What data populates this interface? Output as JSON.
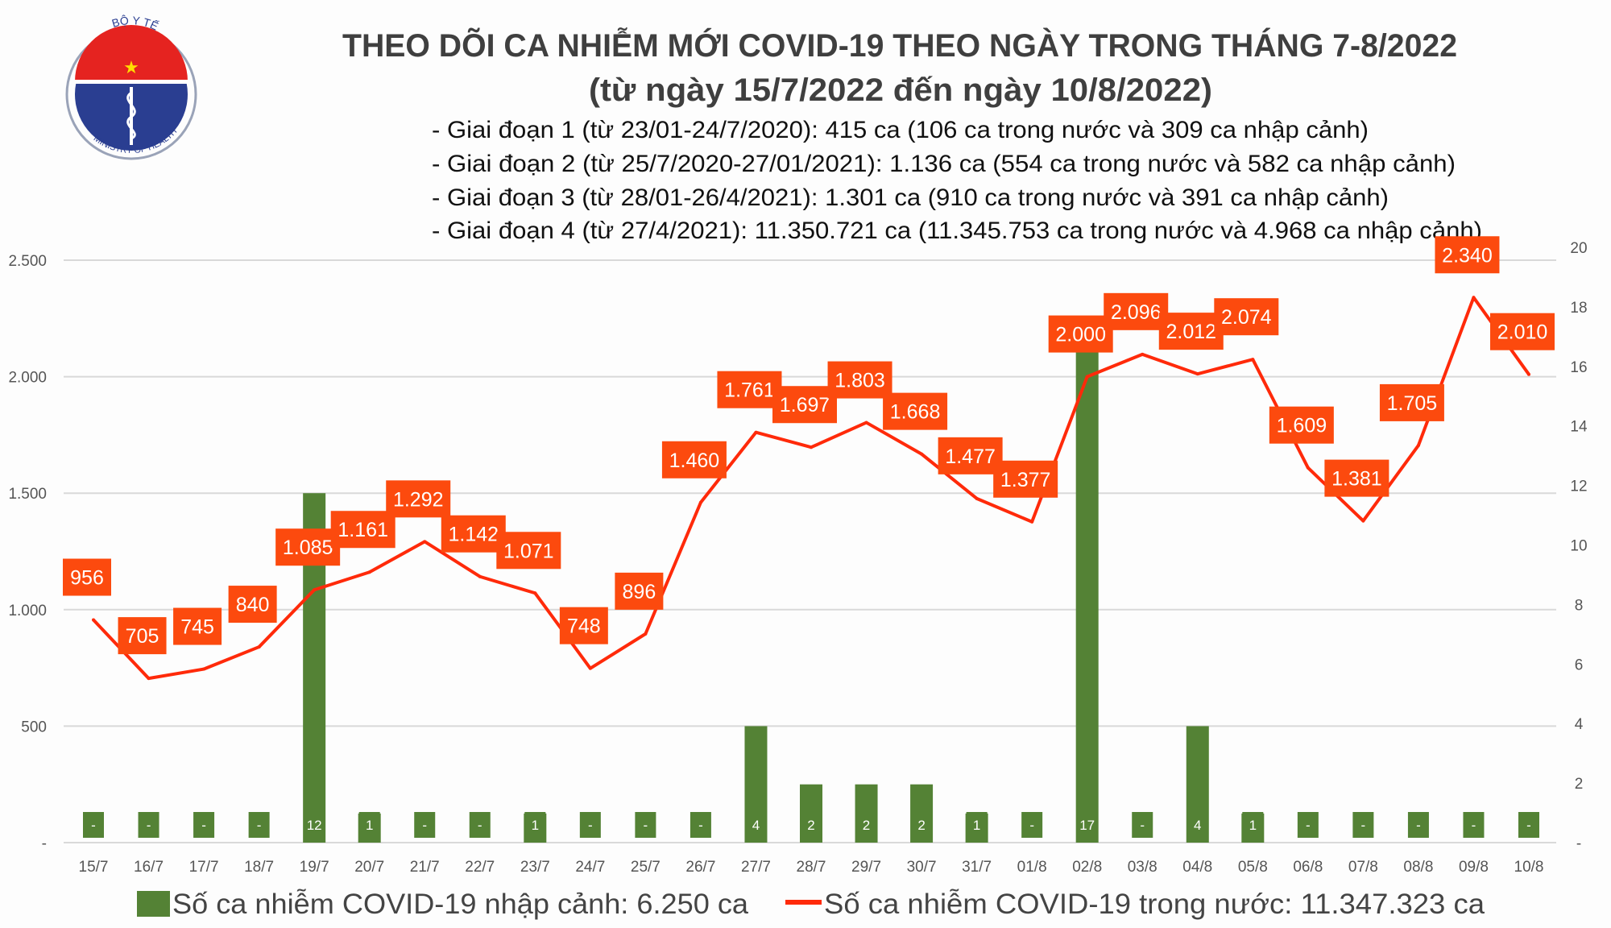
{
  "header": {
    "title": "THEO DÕI CA NHIỄM MỚI COVID-19 THEO NGÀY TRONG THÁNG 7-8/2022",
    "subtitle": "(từ ngày 15/7/2022 đến ngày 10/8/2022)",
    "bullets": [
      "- Giai đoạn 1 (từ 23/01-24/7/2020): 415 ca (106 ca trong nước và 309 ca nhập cảnh)",
      "- Giai đoạn 2 (từ 25/7/2020-27/01/2021): 1.136 ca (554 ca trong nước và 582 ca nhập cảnh)",
      "- Giai đoạn 3 (từ 28/01-26/4/2021): 1.301 ca (910 ca trong nước và 391 ca nhập cảnh)",
      "- Giai đoạn 4 (từ 27/4/2021): 11.350.721 ca (11.345.753 ca trong nước và 4.968 ca nhập cảnh)"
    ],
    "logo": {
      "top_text": "BỘ Y TẾ",
      "bottom_text": "MINISTRY OF HEALTH"
    }
  },
  "colors": {
    "line": "#ff2a0a",
    "label_bg": "#fc4a0e",
    "bar": "#548235",
    "grid": "#d9d9d9"
  },
  "chart_data": {
    "type": "bar+line",
    "categories": [
      "15/7",
      "16/7",
      "17/7",
      "18/7",
      "19/7",
      "20/7",
      "21/7",
      "22/7",
      "23/7",
      "24/7",
      "25/7",
      "26/7",
      "27/7",
      "28/7",
      "29/7",
      "30/7",
      "31/7",
      "01/8",
      "02/8",
      "03/8",
      "04/8",
      "05/8",
      "06/8",
      "07/8",
      "08/8",
      "09/8",
      "10/8"
    ],
    "series": [
      {
        "name": "Số ca nhiễm COVID-19 nhập cảnh: 6.250 ca",
        "type": "bar",
        "axis": "right",
        "values": [
          0,
          0,
          0,
          0,
          12,
          1,
          0,
          0,
          1,
          0,
          0,
          0,
          4,
          2,
          2,
          2,
          1,
          0,
          17,
          0,
          4,
          1,
          0,
          0,
          0,
          0,
          0
        ],
        "labels": [
          "-",
          "-",
          "-",
          "-",
          "12",
          "1",
          "-",
          "-",
          "1",
          "-",
          "-",
          "-",
          "4",
          "2",
          "2",
          "2",
          "1",
          "-",
          "17",
          "-",
          "4",
          "1",
          "-",
          "-",
          "-",
          "-",
          "-"
        ]
      },
      {
        "name": "Số ca nhiễm COVID-19 trong nước: 11.347.323 ca",
        "type": "line",
        "axis": "left",
        "values": [
          956,
          705,
          745,
          840,
          1085,
          1161,
          1292,
          1142,
          1071,
          748,
          896,
          1460,
          1761,
          1697,
          1803,
          1668,
          1477,
          1377,
          2000,
          2096,
          2012,
          2074,
          1609,
          1381,
          1705,
          2340,
          2010
        ],
        "labels": [
          "956",
          "705",
          "745",
          "840",
          "1.085",
          "1.161",
          "1.292",
          "1.142",
          "1.071",
          "748",
          "896",
          "1.460",
          "1.761",
          "1.697",
          "1.803",
          "1.668",
          "1.477",
          "1.377",
          "2.000",
          "2.096",
          "2.012",
          "2.074",
          "1.609",
          "1.381",
          "1.705",
          "2.340",
          "2.010"
        ]
      }
    ],
    "y_left": {
      "range": [
        0,
        2500
      ],
      "ticks": [
        "-",
        "500",
        "1.000",
        "1.500",
        "2.000",
        "2.500"
      ]
    },
    "y_right": {
      "range": [
        0,
        20
      ],
      "ticks": [
        "-",
        "2",
        "4",
        "6",
        "8",
        "10",
        "12",
        "14",
        "16",
        "18",
        "20"
      ]
    },
    "grid": true,
    "legend": "bottom"
  }
}
